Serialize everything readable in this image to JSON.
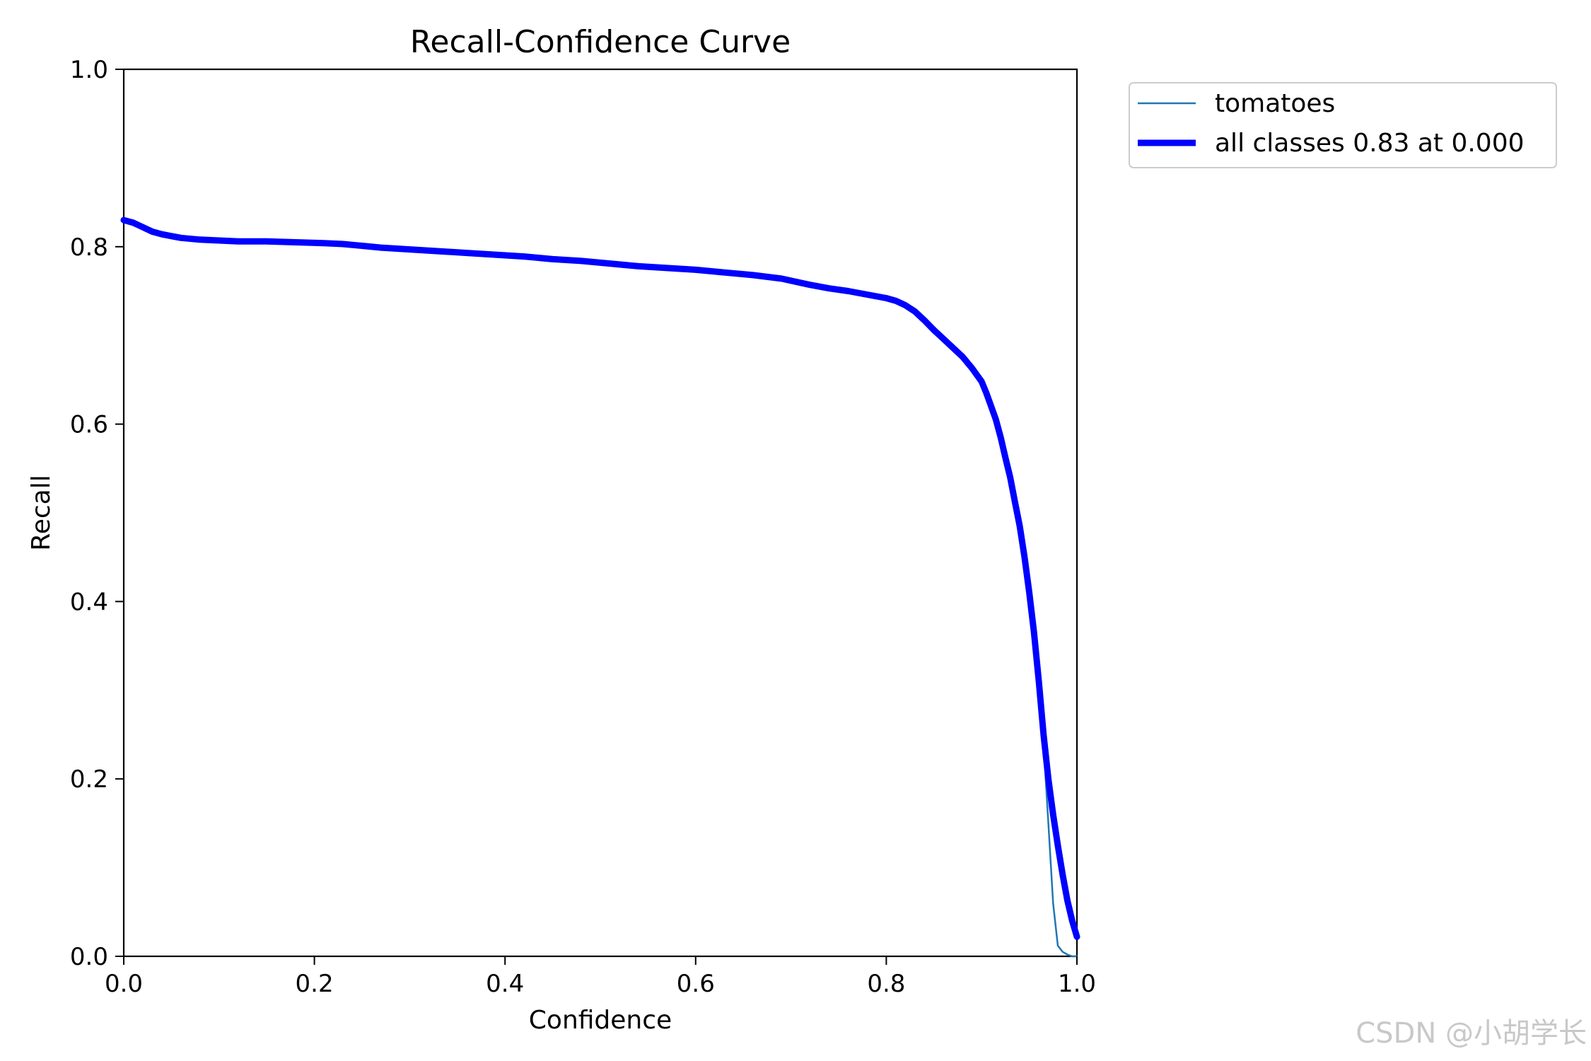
{
  "chart_data": {
    "type": "line",
    "title": "Recall-Confidence Curve",
    "xlabel": "Confidence",
    "ylabel": "Recall",
    "xlim": [
      0.0,
      1.0
    ],
    "ylim": [
      0.0,
      1.0
    ],
    "xticks": [
      "0.0",
      "0.2",
      "0.4",
      "0.6",
      "0.8",
      "1.0"
    ],
    "yticks": [
      "0.0",
      "0.2",
      "0.4",
      "0.6",
      "0.8",
      "1.0"
    ],
    "grid": false,
    "legend_position": "outside-upper-right",
    "series": [
      {
        "name": "tomatoes",
        "color": "#1f77b4",
        "style": "thin",
        "x": [
          0.0,
          0.01,
          0.02,
          0.03,
          0.04,
          0.05,
          0.06,
          0.08,
          0.1,
          0.12,
          0.15,
          0.18,
          0.21,
          0.23,
          0.25,
          0.27,
          0.3,
          0.33,
          0.36,
          0.39,
          0.42,
          0.45,
          0.48,
          0.51,
          0.54,
          0.57,
          0.6,
          0.63,
          0.66,
          0.69,
          0.72,
          0.74,
          0.76,
          0.78,
          0.8,
          0.81,
          0.82,
          0.83,
          0.84,
          0.85,
          0.86,
          0.87,
          0.88,
          0.89,
          0.9,
          0.905,
          0.91,
          0.915,
          0.92,
          0.925,
          0.93,
          0.935,
          0.94,
          0.945,
          0.95,
          0.955,
          0.96,
          0.965,
          0.97,
          0.975,
          0.98,
          0.985,
          0.99,
          0.995,
          1.0
        ],
        "values": [
          0.83,
          0.827,
          0.822,
          0.817,
          0.814,
          0.812,
          0.81,
          0.808,
          0.807,
          0.806,
          0.806,
          0.805,
          0.804,
          0.803,
          0.801,
          0.799,
          0.797,
          0.795,
          0.793,
          0.791,
          0.789,
          0.786,
          0.784,
          0.781,
          0.778,
          0.776,
          0.774,
          0.771,
          0.768,
          0.764,
          0.757,
          0.753,
          0.75,
          0.746,
          0.742,
          0.739,
          0.734,
          0.727,
          0.717,
          0.706,
          0.696,
          0.686,
          0.676,
          0.663,
          0.648,
          0.635,
          0.622,
          0.61,
          0.59,
          0.567,
          0.546,
          0.52,
          0.495,
          0.46,
          0.42,
          0.37,
          0.31,
          0.24,
          0.15,
          0.06,
          0.012,
          0.005,
          0.002,
          0.0,
          0.0
        ]
      },
      {
        "name": "all classes 0.83 at 0.000",
        "color": "#0000ff",
        "style": "thick",
        "x": [
          0.0,
          0.01,
          0.02,
          0.03,
          0.04,
          0.05,
          0.06,
          0.08,
          0.1,
          0.12,
          0.15,
          0.18,
          0.21,
          0.23,
          0.25,
          0.27,
          0.3,
          0.33,
          0.36,
          0.39,
          0.42,
          0.45,
          0.48,
          0.51,
          0.54,
          0.57,
          0.6,
          0.63,
          0.66,
          0.69,
          0.72,
          0.74,
          0.76,
          0.78,
          0.8,
          0.81,
          0.82,
          0.83,
          0.84,
          0.85,
          0.86,
          0.87,
          0.88,
          0.89,
          0.9,
          0.905,
          0.91,
          0.915,
          0.92,
          0.925,
          0.93,
          0.935,
          0.94,
          0.945,
          0.95,
          0.955,
          0.96,
          0.965,
          0.97,
          0.975,
          0.98,
          0.985,
          0.99,
          0.995,
          1.0
        ],
        "values": [
          0.83,
          0.827,
          0.822,
          0.817,
          0.814,
          0.812,
          0.81,
          0.808,
          0.807,
          0.806,
          0.806,
          0.805,
          0.804,
          0.803,
          0.801,
          0.799,
          0.797,
          0.795,
          0.793,
          0.791,
          0.789,
          0.786,
          0.784,
          0.781,
          0.778,
          0.776,
          0.774,
          0.771,
          0.768,
          0.764,
          0.757,
          0.753,
          0.75,
          0.746,
          0.742,
          0.739,
          0.734,
          0.727,
          0.717,
          0.706,
          0.696,
          0.686,
          0.676,
          0.663,
          0.648,
          0.635,
          0.62,
          0.605,
          0.585,
          0.562,
          0.54,
          0.512,
          0.485,
          0.45,
          0.41,
          0.365,
          0.31,
          0.25,
          0.2,
          0.16,
          0.125,
          0.092,
          0.063,
          0.04,
          0.022
        ]
      }
    ]
  },
  "watermark": "CSDN @小胡学长"
}
